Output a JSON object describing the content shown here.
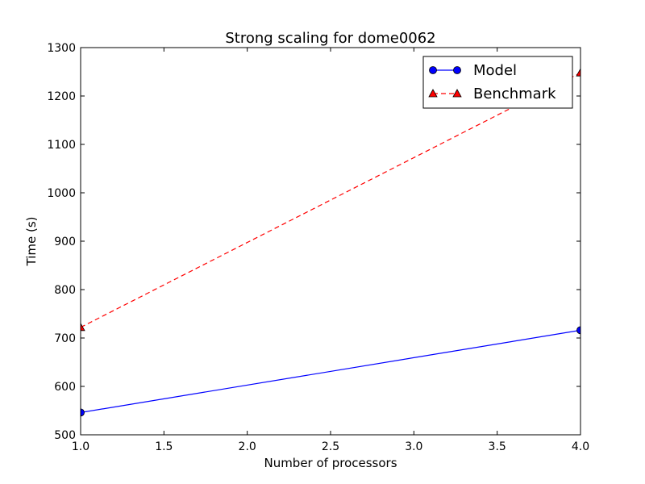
{
  "chart_data": {
    "type": "line",
    "title": "Strong scaling for dome0062",
    "xlabel": "Number of processors",
    "ylabel": "Time (s)",
    "xlim": [
      1.0,
      4.0
    ],
    "ylim": [
      500,
      1300
    ],
    "x_ticks": [
      "1.0",
      "1.5",
      "2.0",
      "2.5",
      "3.0",
      "3.5",
      "4.0"
    ],
    "y_ticks": [
      "500",
      "600",
      "700",
      "800",
      "900",
      "1000",
      "1100",
      "1200",
      "1300"
    ],
    "x_tick_values": [
      1.0,
      1.5,
      2.0,
      2.5,
      3.0,
      3.5,
      4.0
    ],
    "y_tick_values": [
      500,
      600,
      700,
      800,
      900,
      1000,
      1100,
      1200,
      1300
    ],
    "grid": false,
    "legend_position": "top-right",
    "x": [
      1,
      4
    ],
    "series": [
      {
        "name": "Model",
        "values": [
          546,
          716
        ],
        "color": "#0000ff",
        "marker": "circle",
        "linestyle": "solid"
      },
      {
        "name": "Benchmark",
        "values": [
          722,
          1248
        ],
        "color": "#ff0000",
        "marker": "triangle",
        "linestyle": "dashed"
      }
    ]
  }
}
